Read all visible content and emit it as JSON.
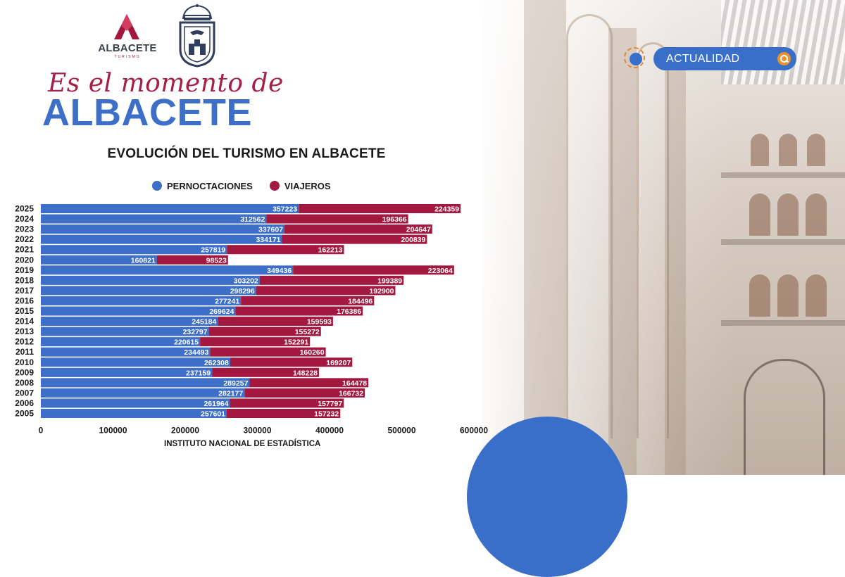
{
  "header": {
    "logo_text": "ALBACETE",
    "logo_sub": "TURISMO",
    "tagline": "Es el momento de",
    "brand": "ALBACETE"
  },
  "search": {
    "label": "ACTUALIDAD",
    "icon": "search-icon"
  },
  "colors": {
    "pernoctaciones": "#3d6ec8",
    "viajeros": "#a3183f",
    "accent": "#e8922e"
  },
  "source": "INSTITUTO NACIONAL DE ESTADÍSTICA",
  "chart_data": {
    "type": "bar",
    "orientation": "horizontal",
    "stacked": true,
    "title": "EVOLUCIÓN DEL TURISMO EN ALBACETE",
    "categories": [
      "2025",
      "2024",
      "2023",
      "2022",
      "2021",
      "2020",
      "2019",
      "2018",
      "2017",
      "2016",
      "2015",
      "2014",
      "2013",
      "2012",
      "2011",
      "2010",
      "2009",
      "2008",
      "2007",
      "2006",
      "2005"
    ],
    "series": [
      {
        "name": "PERNOCTACIONES",
        "values": [
          357223,
          312562,
          337607,
          334171,
          257819,
          160821,
          349436,
          303202,
          298296,
          277241,
          269624,
          245184,
          232797,
          220615,
          234493,
          262308,
          237159,
          289257,
          282177,
          261964,
          257601
        ]
      },
      {
        "name": "VIAJEROS",
        "values": [
          224359,
          196366,
          204647,
          200839,
          162213,
          98523,
          223064,
          199389,
          192900,
          184496,
          176386,
          159593,
          155272,
          152291,
          160260,
          169207,
          148228,
          164478,
          166732,
          157797,
          157232
        ]
      }
    ],
    "xticks": [
      0,
      100000,
      200000,
      300000,
      400000,
      500000,
      600000
    ],
    "xlim": [
      0,
      600000
    ],
    "legend": "top",
    "grid": false
  }
}
